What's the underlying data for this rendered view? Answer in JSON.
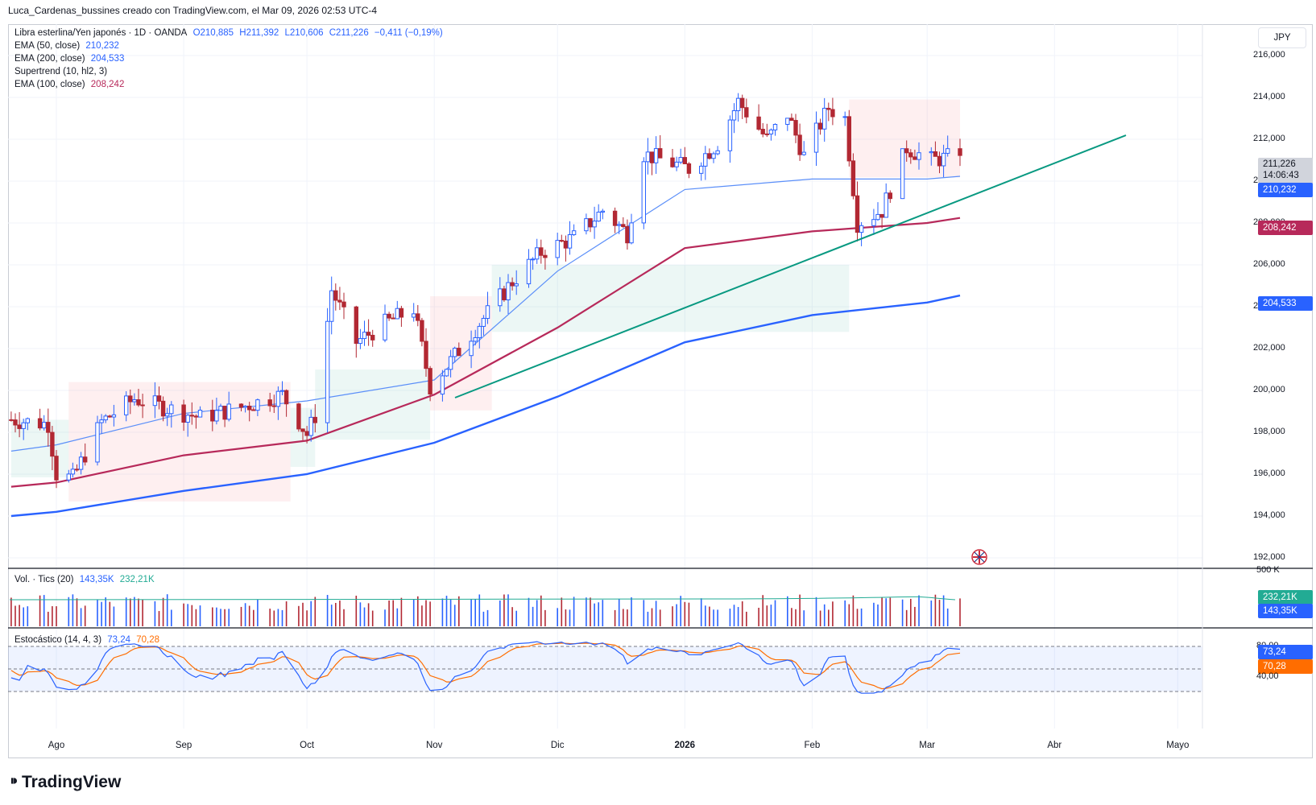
{
  "header": {
    "caption": "Luca_Cardenas_bussines creado con TradingView.com, el Mar 09, 2026 02:53 UTC-4"
  },
  "symbol": {
    "name": "Libra esterlina/Yen japonés · 1D · OANDA",
    "open": "O210,885",
    "high": "H211,392",
    "low": "L210,606",
    "close": "C211,226",
    "change": "−0,411 (−0,19%)"
  },
  "indicators": [
    {
      "name": "EMA (50, close)",
      "value": "210,232"
    },
    {
      "name": "EMA (200, close)",
      "value": "204,533"
    },
    {
      "name": "Supertrend (10, hl2, 3)",
      "value": ""
    },
    {
      "name": "EMA (100, close)",
      "value": "208,242"
    }
  ],
  "volume_legend": {
    "name": "Vol. · Tics (20)",
    "v1": "143,35K",
    "v2": "232,21K"
  },
  "stoch_legend": {
    "name": "Estocástico (14, 4, 3)",
    "k": "73,24",
    "d": "70,28"
  },
  "currency_button": "JPY",
  "price_axis": [
    "216,000",
    "214,000",
    "212,000",
    "210,000",
    "208,000",
    "206,000",
    "204,000",
    "202,000",
    "200,000",
    "198,000",
    "196,000",
    "194,000",
    "192,000"
  ],
  "price_tags": {
    "last": "211,226",
    "countdown": "14:06:43",
    "ema50": "210,232",
    "ema100": "208,242",
    "ema200": "204,533"
  },
  "volume_axis": {
    "top": "500 K",
    "tag1": "232,21K",
    "tag2": "143,35K"
  },
  "stoch_axis": {
    "top": "80,00",
    "bottom": "40,00",
    "k_tag": "73,24",
    "d_tag": "70,28"
  },
  "time_axis": [
    "Ago",
    "Sep",
    "Oct",
    "Nov",
    "Dic",
    "2026",
    "Feb",
    "Mar",
    "Abr",
    "Mayo"
  ],
  "brand": "TradingView",
  "colors": {
    "up": "#2962ff",
    "down": "#b22833",
    "ema50": "#5b8ff9",
    "ema100": "#b7295a",
    "ema200": "#2962ff",
    "trendline": "#089981",
    "stoch_k": "#2962ff",
    "stoch_d": "#ff6d00"
  },
  "chart_data": {
    "type": "line",
    "title": "Libra esterlina/Yen japonés · 1D · OANDA",
    "ylim": [
      191.5,
      217.5
    ],
    "x": [
      "Jul 21",
      "Aug 1",
      "Sep 1",
      "Oct 1",
      "Nov 1",
      "Dec 1",
      "Jan 1",
      "Feb 1",
      "Mar 1",
      "Mar 9"
    ],
    "series": [
      {
        "name": "EMA (50, close)",
        "values": [
          197.1,
          197.4,
          198.9,
          199.5,
          200.5,
          205.7,
          209.6,
          210.1,
          210.1,
          210.232
        ]
      },
      {
        "name": "EMA (100, close)",
        "values": [
          195.4,
          195.6,
          196.9,
          197.6,
          199.8,
          203.0,
          206.8,
          207.6,
          208.0,
          208.242
        ]
      },
      {
        "name": "EMA (200, close)",
        "values": [
          194.0,
          194.2,
          195.2,
          196.0,
          197.5,
          199.7,
          202.3,
          203.6,
          204.2,
          204.533
        ]
      },
      {
        "name": "close",
        "values": [
          198.5,
          196.0,
          198.6,
          197.9,
          200.7,
          205.6,
          212.0,
          213.5,
          210.9,
          211.226
        ]
      }
    ]
  }
}
